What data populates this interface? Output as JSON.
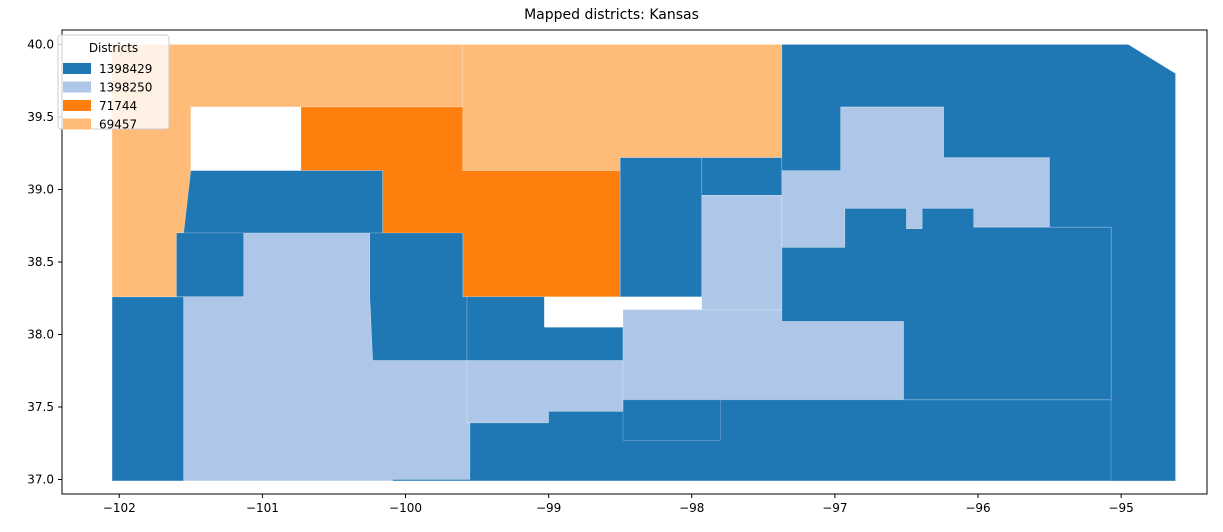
{
  "chart_data": {
    "type": "choropleth-map",
    "title": "Mapped districts: Kansas",
    "xlim": [
      -102.4,
      -94.4
    ],
    "ylim": [
      36.9,
      40.1
    ],
    "xticks": [
      -102,
      -101,
      -100,
      -99,
      -98,
      -97,
      -96,
      -95
    ],
    "xtick_labels": [
      "−102",
      "−101",
      "−100",
      "−99",
      "−98",
      "−97",
      "−96",
      "−95"
    ],
    "yticks": [
      37.0,
      37.5,
      38.0,
      38.5,
      39.0,
      39.5,
      40.0
    ],
    "ytick_labels": [
      "37.0",
      "37.5",
      "38.0",
      "38.5",
      "39.0",
      "39.5",
      "40.0"
    ],
    "legend": {
      "title": "Districts",
      "placement": "top-left",
      "entries": [
        {
          "label": "1398429",
          "color": "#1f77b4"
        },
        {
          "label": "1398250",
          "color": "#aec7e8"
        },
        {
          "label": "71744",
          "color": "#ff7f0e"
        },
        {
          "label": "69457",
          "color": "#ffbb78"
        }
      ]
    },
    "district_colors": {
      "1398429": "#1f77b4",
      "1398250": "#aec7e8",
      "71744": "#ff7f0e",
      "69457": "#ffbb78"
    },
    "regions": [
      {
        "district": "1398429",
        "outline": [
          [
            -102.05,
            38.26
          ],
          [
            -101.55,
            38.26
          ],
          [
            -101.55,
            36.99
          ],
          [
            -102.05,
            36.99
          ]
        ]
      },
      {
        "district": "69457",
        "outline": [
          [
            -102.05,
            40.0
          ],
          [
            -99.6,
            40.0
          ],
          [
            -99.6,
            39.57
          ],
          [
            -101.5,
            39.57
          ],
          [
            -101.5,
            38.26
          ],
          [
            -102.05,
            38.26
          ]
        ]
      },
      {
        "district": "69457",
        "outline": [
          [
            -99.6,
            40.0
          ],
          [
            -97.37,
            40.0
          ],
          [
            -97.37,
            39.22
          ],
          [
            -98.5,
            39.22
          ],
          [
            -98.5,
            39.13
          ],
          [
            -99.6,
            39.13
          ]
        ]
      },
      {
        "district": "71744",
        "outline": [
          [
            -100.73,
            39.57
          ],
          [
            -99.6,
            39.57
          ],
          [
            -99.6,
            39.13
          ],
          [
            -98.5,
            39.13
          ],
          [
            -98.5,
            38.26
          ],
          [
            -99.6,
            38.26
          ],
          [
            -99.6,
            38.7
          ],
          [
            -100.16,
            38.7
          ],
          [
            -100.16,
            39.13
          ],
          [
            -100.73,
            39.13
          ]
        ]
      },
      {
        "district": "1398429",
        "outline": [
          [
            -101.5,
            39.13
          ],
          [
            -100.16,
            39.13
          ],
          [
            -100.16,
            38.7
          ],
          [
            -100.73,
            38.7
          ],
          [
            -101.6,
            38.7
          ],
          [
            -101.55,
            38.7
          ]
        ]
      },
      {
        "district": "1398429",
        "outline": [
          [
            -101.6,
            38.7
          ],
          [
            -101.13,
            38.7
          ],
          [
            -101.13,
            38.26
          ],
          [
            -101.6,
            38.26
          ]
        ]
      },
      {
        "district": "1398429",
        "outline": [
          [
            -100.25,
            38.7
          ],
          [
            -99.6,
            38.7
          ],
          [
            -99.6,
            38.26
          ],
          [
            -99.57,
            38.26
          ],
          [
            -99.57,
            37.82
          ],
          [
            -100.23,
            37.82
          ],
          [
            -100.25,
            38.26
          ]
        ]
      },
      {
        "district": "1398250",
        "outline": [
          [
            -101.13,
            38.7
          ],
          [
            -100.25,
            38.7
          ],
          [
            -100.25,
            38.26
          ],
          [
            -100.23,
            37.82
          ],
          [
            -99.57,
            37.82
          ],
          [
            -99.57,
            37.39
          ],
          [
            -99.55,
            37.39
          ],
          [
            -99.55,
            37.0
          ],
          [
            -100.09,
            37.0
          ],
          [
            -100.09,
            36.99
          ],
          [
            -101.55,
            36.99
          ],
          [
            -101.55,
            38.26
          ],
          [
            -101.13,
            38.26
          ]
        ]
      },
      {
        "district": "1398429",
        "outline": [
          [
            -99.57,
            38.26
          ],
          [
            -99.03,
            38.26
          ],
          [
            -99.03,
            38.05
          ],
          [
            -98.48,
            38.05
          ],
          [
            -98.48,
            37.82
          ],
          [
            -99.57,
            37.82
          ]
        ]
      },
      {
        "district": "1398250",
        "outline": [
          [
            -99.57,
            37.82
          ],
          [
            -98.48,
            37.82
          ],
          [
            -98.48,
            37.47
          ],
          [
            -99.0,
            37.47
          ],
          [
            -99.0,
            37.39
          ],
          [
            -99.57,
            37.39
          ]
        ]
      },
      {
        "district": "1398429",
        "outline": [
          [
            -98.5,
            38.26
          ],
          [
            -98.48,
            38.26
          ],
          [
            -98.48,
            38.05
          ],
          [
            -98.48,
            37.82
          ],
          [
            -98.48,
            37.47
          ],
          [
            -99.0,
            37.47
          ],
          [
            -99.0,
            37.39
          ],
          [
            -99.55,
            37.39
          ],
          [
            -99.55,
            37.0
          ],
          [
            -100.09,
            37.0
          ],
          [
            -100.09,
            36.99
          ],
          [
            -94.62,
            36.99
          ],
          [
            -94.62,
            37.55
          ],
          [
            -96.52,
            37.55
          ],
          [
            -96.52,
            38.09
          ],
          [
            -97.37,
            38.09
          ],
          [
            -97.37,
            38.17
          ],
          [
            -98.48,
            38.17
          ],
          [
            -98.48,
            38.26
          ]
        ]
      },
      {
        "district": "1398250",
        "outline": [
          [
            -98.48,
            38.17
          ],
          [
            -97.37,
            38.17
          ],
          [
            -97.37,
            38.09
          ],
          [
            -96.52,
            38.09
          ],
          [
            -96.52,
            37.55
          ],
          [
            -98.48,
            37.55
          ]
        ]
      },
      {
        "district": "1398429",
        "outline": [
          [
            -98.48,
            37.55
          ],
          [
            -97.8,
            37.55
          ],
          [
            -97.8,
            37.27
          ],
          [
            -98.48,
            37.27
          ]
        ]
      },
      {
        "district": "1398429",
        "outline": [
          [
            -98.5,
            39.22
          ],
          [
            -97.93,
            39.22
          ],
          [
            -97.93,
            38.26
          ],
          [
            -98.5,
            38.26
          ]
        ]
      },
      {
        "district": "1398429",
        "outline": [
          [
            -97.93,
            39.22
          ],
          [
            -97.37,
            39.22
          ],
          [
            -97.37,
            38.96
          ],
          [
            -97.93,
            38.96
          ]
        ]
      },
      {
        "district": "1398250",
        "outline": [
          [
            -97.93,
            38.96
          ],
          [
            -97.37,
            38.96
          ],
          [
            -97.37,
            38.6
          ],
          [
            -97.37,
            38.17
          ],
          [
            -97.93,
            38.17
          ]
        ]
      },
      {
        "district": "1398250",
        "outline": [
          [
            -97.37,
            39.13
          ],
          [
            -96.96,
            39.13
          ],
          [
            -96.96,
            39.57
          ],
          [
            -96.24,
            39.57
          ],
          [
            -96.24,
            39.22
          ],
          [
            -95.18,
            39.22
          ],
          [
            -95.18,
            38.74
          ],
          [
            -95.5,
            38.74
          ],
          [
            -95.5,
            38.39
          ],
          [
            -95.07,
            38.39
          ],
          [
            -95.07,
            38.74
          ],
          [
            -96.03,
            38.74
          ],
          [
            -96.03,
            38.87
          ],
          [
            -96.39,
            38.87
          ],
          [
            -96.39,
            38.73
          ],
          [
            -96.5,
            38.73
          ],
          [
            -96.5,
            38.87
          ],
          [
            -96.93,
            38.87
          ],
          [
            -96.93,
            38.6
          ],
          [
            -97.37,
            38.6
          ]
        ]
      },
      {
        "district": "1398429",
        "outline": [
          [
            -97.37,
            40.0
          ],
          [
            -94.95,
            40.0
          ],
          [
            -94.62,
            39.8
          ],
          [
            -94.62,
            36.99
          ],
          [
            -95.07,
            36.99
          ],
          [
            -95.07,
            38.74
          ],
          [
            -95.5,
            38.74
          ],
          [
            -95.5,
            39.22
          ],
          [
            -96.24,
            39.22
          ],
          [
            -96.24,
            39.57
          ],
          [
            -96.96,
            39.57
          ],
          [
            -96.96,
            39.13
          ],
          [
            -97.37,
            39.13
          ]
        ]
      },
      {
        "district": "1398429",
        "outline": [
          [
            -96.93,
            38.87
          ],
          [
            -96.5,
            38.87
          ],
          [
            -96.5,
            38.73
          ],
          [
            -96.39,
            38.73
          ],
          [
            -96.39,
            38.87
          ],
          [
            -96.03,
            38.87
          ],
          [
            -96.03,
            38.74
          ],
          [
            -95.07,
            38.74
          ],
          [
            -95.07,
            38.39
          ],
          [
            -95.07,
            37.55
          ],
          [
            -96.52,
            37.55
          ],
          [
            -96.52,
            38.09
          ],
          [
            -97.37,
            38.09
          ],
          [
            -97.37,
            38.6
          ],
          [
            -96.93,
            38.6
          ]
        ]
      }
    ]
  }
}
